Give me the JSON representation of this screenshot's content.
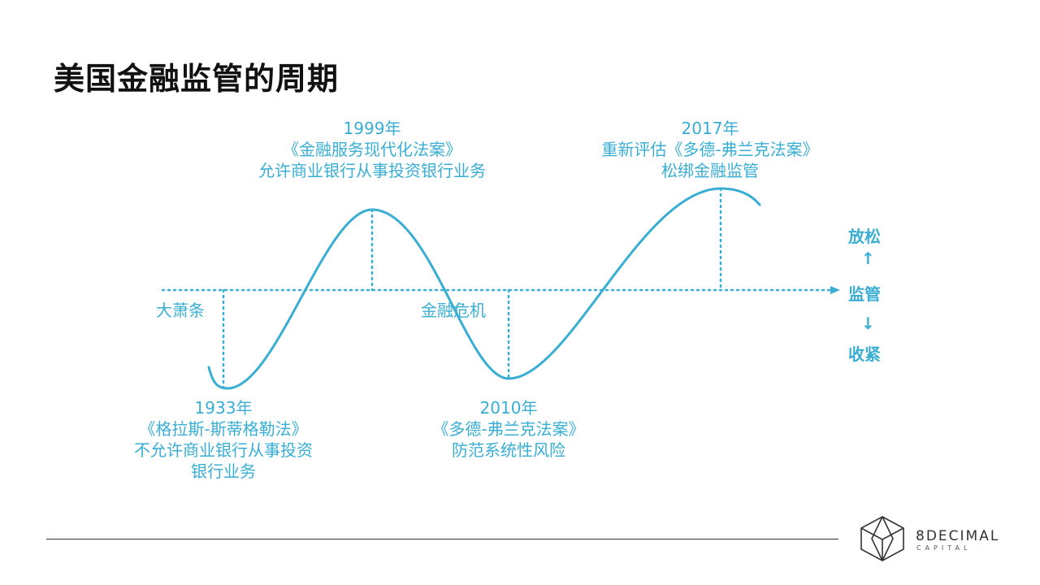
{
  "title": "美国金融监管的周期",
  "colors": {
    "accent": "#3aaed2",
    "title": "#111111",
    "footer_line": "#333333"
  },
  "events": {
    "e1933": {
      "year": "1933年",
      "law": "《格拉斯-斯蒂格勒法》",
      "desc1": "不允许商业银行从事投资",
      "desc2": "银行业务",
      "marker": "大萧条"
    },
    "e1999": {
      "year": "1999年",
      "law": "《金融服务现代化法案》",
      "desc1": "允许商业银行从事投资银行业务"
    },
    "e2010": {
      "year": "2010年",
      "law": "《多德-弗兰克法案》",
      "desc1": "防范系统性风险",
      "marker": "金融危机"
    },
    "e2017": {
      "year": "2017年",
      "law": "重新评估《多德-弗兰克法案》",
      "desc1": "松绑金融监管"
    }
  },
  "axis": {
    "up": "放松",
    "mid": "监管",
    "down": "收紧",
    "arrow_up": "↑",
    "arrow_down": "↓"
  },
  "logo": {
    "name": "8DECIMAL",
    "sub": "CAPITAL",
    "icon": "cube-logo-icon"
  }
}
